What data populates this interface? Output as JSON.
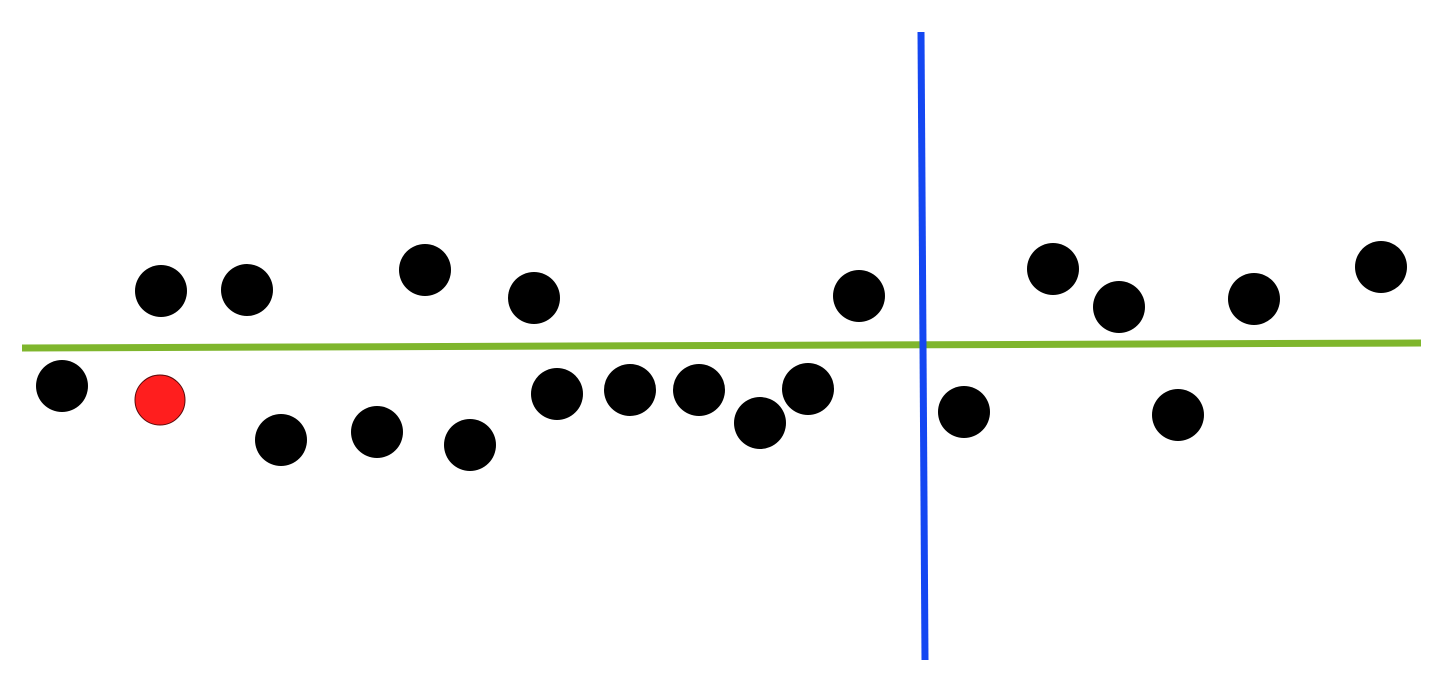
{
  "colors": {
    "background": "#ffffff",
    "horizontal_line": "#7fb62d",
    "vertical_line": "#1447f2",
    "dot": "#000000",
    "highlight_dot": "#ff1e1e",
    "highlight_outline": "#5a0a0a"
  },
  "diagram": {
    "dot_count": 22,
    "highlighted_dot_count": 1,
    "lines": [
      "horizontal-divider",
      "vertical-divider"
    ]
  }
}
